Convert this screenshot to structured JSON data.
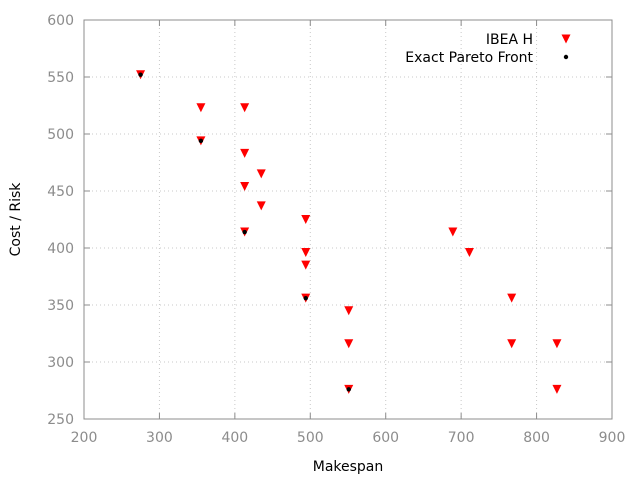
{
  "chart_data": {
    "type": "scatter",
    "xlabel": "Makespan",
    "ylabel": "Cost / Risk",
    "xlim": [
      200,
      900
    ],
    "ylim": [
      250,
      600
    ],
    "xticks": [
      200,
      300,
      400,
      500,
      600,
      700,
      800,
      900
    ],
    "yticks": [
      250,
      300,
      350,
      400,
      450,
      500,
      550,
      600
    ],
    "grid": true,
    "legend_position": "top-right",
    "series": [
      {
        "name": "IBEA H",
        "marker": "triangle-down",
        "color": "#ff0000",
        "points": [
          [
            275,
            552
          ],
          [
            355,
            523
          ],
          [
            413,
            523
          ],
          [
            355,
            494
          ],
          [
            413,
            483
          ],
          [
            413,
            454
          ],
          [
            435,
            465
          ],
          [
            435,
            437
          ],
          [
            494,
            425
          ],
          [
            413,
            414
          ],
          [
            494,
            396
          ],
          [
            494,
            385
          ],
          [
            494,
            356
          ],
          [
            551,
            345
          ],
          [
            551,
            316
          ],
          [
            551,
            276
          ],
          [
            689,
            414
          ],
          [
            711,
            396
          ],
          [
            767,
            356
          ],
          [
            767,
            316
          ],
          [
            827,
            316
          ],
          [
            827,
            276
          ]
        ]
      },
      {
        "name": "Exact Pareto Front",
        "marker": "dot",
        "color": "#000000",
        "points": [
          [
            275,
            552
          ],
          [
            355,
            494
          ],
          [
            413,
            414
          ],
          [
            494,
            356
          ],
          [
            551,
            276
          ]
        ]
      }
    ]
  }
}
